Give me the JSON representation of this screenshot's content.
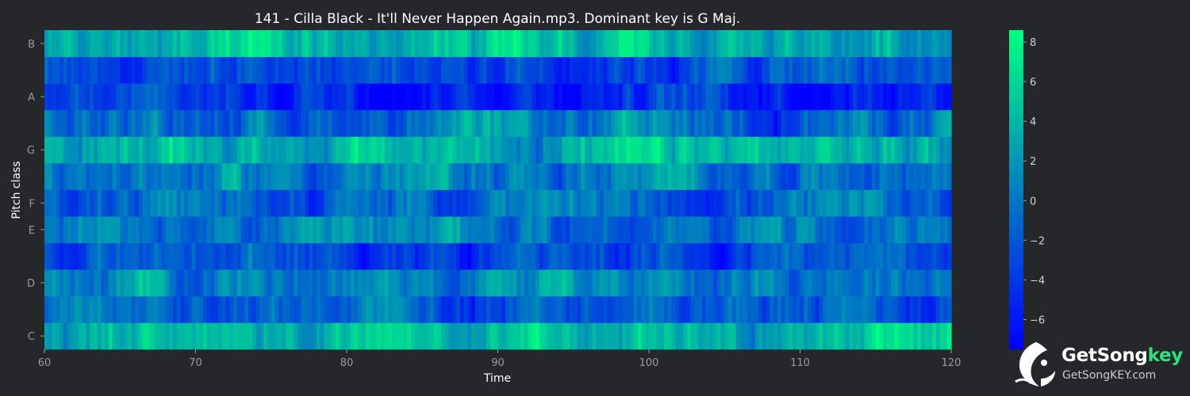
{
  "chart_data": {
    "type": "heatmap",
    "title": "141 - Cilla Black - It'll Never Happen Again.mp3. Dominant key is G Maj.",
    "xlabel": "Time",
    "ylabel": "Pitch class",
    "xlim": [
      60,
      120
    ],
    "x_ticks": [
      "60",
      "70",
      "80",
      "90",
      "100",
      "110",
      "120"
    ],
    "y_ticks": [
      "C",
      "D",
      "E",
      "F",
      "G",
      "A",
      "B"
    ],
    "rows": [
      "C",
      "C#",
      "D",
      "D#",
      "E",
      "F",
      "F#",
      "G",
      "G#",
      "A",
      "A#",
      "B"
    ],
    "row_mean_values": [
      3.5,
      -1.5,
      1.5,
      -2.5,
      -0.5,
      -1.5,
      0.5,
      3.5,
      -0.5,
      -4.0,
      -2.0,
      3.0
    ],
    "colorbar": {
      "min": -7.5,
      "max": 8.6,
      "ticks": [
        "8",
        "6",
        "4",
        "2",
        "0",
        "−2",
        "−4",
        "−6"
      ],
      "colors": [
        "#0000ff",
        "#0080bf",
        "#00ff80"
      ]
    },
    "background_color": "#25272b"
  },
  "logo": {
    "name_main": "GetSong",
    "name_accent": "key",
    "url": "GetSongKEY.com",
    "icon": "bird-logo-icon"
  }
}
